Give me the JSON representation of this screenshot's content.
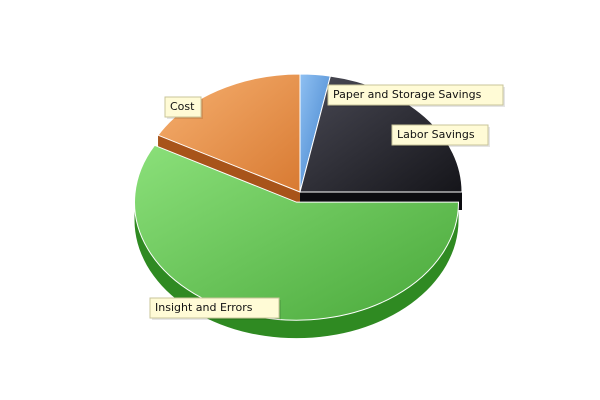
{
  "chart_data": {
    "type": "pie",
    "title": "",
    "legend": "none",
    "slices": [
      {
        "label": "Paper and Storage Savings",
        "value": 3,
        "color": "#6aa3e0"
      },
      {
        "label": "Labor Savings",
        "value": 22,
        "color": "#2b2b33"
      },
      {
        "label": "Insight and Errors",
        "value": 58,
        "color": "#5ec24f"
      },
      {
        "label": "Cost",
        "value": 17,
        "color": "#ee9a55"
      }
    ]
  },
  "colors": {
    "background": "#ffffff",
    "label_box_fill": "#fffbd6",
    "label_box_border": "#c8c49a"
  }
}
